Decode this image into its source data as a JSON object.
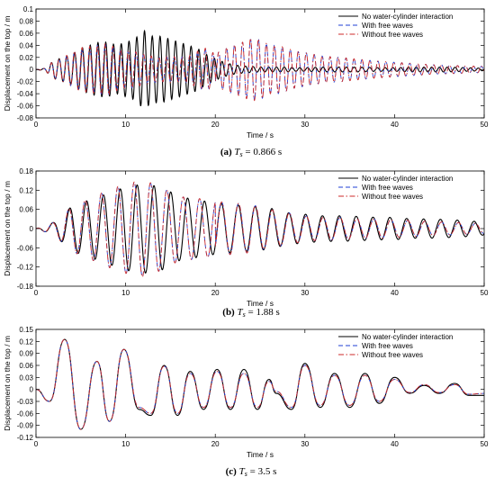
{
  "chart_data": [
    {
      "type": "line",
      "caption_tag": "(a)",
      "caption_value": "= 0.866 s",
      "xlabel": "Time / s",
      "ylabel": "Displacement on the top / m",
      "xlim": [
        0,
        50
      ],
      "ylim": [
        -0.08,
        0.1
      ],
      "xticks": [
        0,
        10,
        20,
        30,
        40,
        50
      ],
      "yticks": [
        -0.08,
        -0.06,
        -0.04,
        -0.02,
        0,
        0.02,
        0.04,
        0.06,
        0.08,
        0.1
      ],
      "ytick_labels": [
        "-0.08",
        "-0.06",
        "-0.04",
        "-0.02",
        "0",
        "0.02",
        "0.04",
        "0.06",
        "0.08",
        "0.1"
      ],
      "grid": false,
      "legend_position": "top-right",
      "series": [
        {
          "name": "No water-cylinder interaction",
          "color": "#000000",
          "dash": "solid",
          "x": [
            0,
            1,
            2,
            3,
            4,
            5,
            6,
            7,
            8,
            9,
            10,
            11,
            12,
            13,
            14,
            15,
            16,
            17,
            18,
            19,
            20,
            21,
            22,
            23,
            24,
            25,
            26,
            27,
            28,
            29,
            30,
            32,
            34,
            36,
            38,
            40,
            42,
            44,
            46,
            48,
            50
          ],
          "envelope": [
            0,
            0.002,
            0.015,
            0.02,
            0.025,
            0.035,
            0.04,
            0.045,
            0.045,
            0.04,
            0.045,
            0.05,
            0.065,
            0.055,
            0.055,
            0.05,
            0.045,
            0.04,
            0.035,
            0.025,
            0.018,
            0.012,
            0.008,
            0.006,
            0.005,
            0.004,
            0.004,
            0.004,
            0.004,
            0.003,
            0.003,
            0.004,
            0.004,
            0.004,
            0.003,
            0.003,
            0.004,
            0.004,
            0.004,
            0.003,
            0.002
          ]
        },
        {
          "name": "With free waves",
          "color": "#1f3fd6",
          "dash": "dashed",
          "x": [
            0,
            1,
            2,
            3,
            4,
            5,
            6,
            7,
            8,
            9,
            10,
            11,
            12,
            13,
            14,
            15,
            16,
            17,
            18,
            19,
            20,
            21,
            22,
            23,
            24,
            25,
            26,
            27,
            28,
            29,
            30,
            32,
            34,
            36,
            38,
            40,
            42,
            44,
            46,
            48,
            50
          ],
          "envelope": [
            0,
            0.002,
            0.015,
            0.02,
            0.028,
            0.035,
            0.038,
            0.04,
            0.042,
            0.035,
            0.03,
            0.03,
            0.025,
            0.022,
            0.02,
            0.022,
            0.02,
            0.022,
            0.03,
            0.035,
            0.025,
            0.035,
            0.04,
            0.045,
            0.05,
            0.05,
            0.04,
            0.04,
            0.035,
            0.03,
            0.028,
            0.022,
            0.02,
            0.017,
            0.014,
            0.012,
            0.01,
            0.008,
            0.007,
            0.006,
            0.005
          ]
        },
        {
          "name": "Without free waves",
          "color": "#cc2a2a",
          "dash": "dashdot",
          "x": [
            0,
            1,
            2,
            3,
            4,
            5,
            6,
            7,
            8,
            9,
            10,
            11,
            12,
            13,
            14,
            15,
            16,
            17,
            18,
            19,
            20,
            21,
            22,
            23,
            24,
            25,
            26,
            27,
            28,
            29,
            30,
            32,
            34,
            36,
            38,
            40,
            42,
            44,
            46,
            48,
            50
          ],
          "envelope": [
            0,
            0.002,
            0.015,
            0.02,
            0.028,
            0.036,
            0.038,
            0.04,
            0.043,
            0.035,
            0.03,
            0.03,
            0.025,
            0.022,
            0.02,
            0.022,
            0.02,
            0.022,
            0.03,
            0.036,
            0.025,
            0.035,
            0.04,
            0.045,
            0.052,
            0.05,
            0.04,
            0.04,
            0.035,
            0.03,
            0.028,
            0.022,
            0.02,
            0.017,
            0.014,
            0.012,
            0.01,
            0.008,
            0.007,
            0.006,
            0.005
          ]
        }
      ]
    },
    {
      "type": "line",
      "caption_tag": "(b)",
      "caption_value": "= 1.88 s",
      "xlabel": "Time / s",
      "ylabel": "Displacement on the top / m",
      "xlim": [
        0,
        50
      ],
      "ylim": [
        -0.18,
        0.18
      ],
      "xticks": [
        0,
        10,
        20,
        30,
        40,
        50
      ],
      "yticks": [
        -0.18,
        -0.12,
        -0.06,
        0,
        0.06,
        0.12,
        0.18
      ],
      "ytick_labels": [
        "-0.18",
        "-0.12",
        "-0.06",
        "0",
        "0.06",
        "0.12",
        "0.18"
      ],
      "grid": false,
      "legend_position": "top-right",
      "series": [
        {
          "name": "No water-cylinder interaction",
          "color": "#000000",
          "dash": "solid",
          "x": [
            0,
            2,
            4,
            6,
            8,
            10,
            12,
            14,
            16,
            18,
            20,
            22,
            24,
            26,
            28,
            30,
            32,
            34,
            36,
            38,
            40,
            42,
            44,
            46,
            48,
            50
          ],
          "envelope": [
            0,
            0.02,
            0.07,
            0.09,
            0.11,
            0.13,
            0.14,
            0.13,
            0.1,
            0.09,
            0.08,
            0.075,
            0.07,
            0.065,
            0.05,
            0.045,
            0.04,
            0.04,
            0.038,
            0.035,
            0.035,
            0.03,
            0.03,
            0.028,
            0.025,
            0.02
          ]
        },
        {
          "name": "With free waves",
          "color": "#1f3fd6",
          "dash": "dashed",
          "x": [
            0,
            2,
            4,
            6,
            8,
            10,
            12,
            14,
            16,
            18,
            20,
            22,
            24,
            26,
            28,
            30,
            32,
            34,
            36,
            38,
            40,
            42,
            44,
            46,
            48,
            50
          ],
          "envelope": [
            0,
            0.02,
            0.072,
            0.095,
            0.12,
            0.14,
            0.15,
            0.13,
            0.1,
            0.095,
            0.085,
            0.08,
            0.075,
            0.06,
            0.05,
            0.04,
            0.035,
            0.035,
            0.03,
            0.03,
            0.028,
            0.025,
            0.022,
            0.02,
            0.018,
            0.015
          ]
        },
        {
          "name": "Without free waves",
          "color": "#cc2a2a",
          "dash": "dashdot",
          "x": [
            0,
            2,
            4,
            6,
            8,
            10,
            12,
            14,
            16,
            18,
            20,
            22,
            24,
            26,
            28,
            30,
            32,
            34,
            36,
            38,
            40,
            42,
            44,
            46,
            48,
            50
          ],
          "envelope": [
            0,
            0.02,
            0.072,
            0.095,
            0.12,
            0.14,
            0.152,
            0.13,
            0.1,
            0.095,
            0.085,
            0.08,
            0.075,
            0.06,
            0.05,
            0.04,
            0.035,
            0.035,
            0.03,
            0.03,
            0.028,
            0.025,
            0.022,
            0.02,
            0.018,
            0.015
          ]
        }
      ]
    },
    {
      "type": "line",
      "caption_tag": "(c)",
      "caption_value": "= 3.5 s",
      "xlabel": "Time / s",
      "ylabel": "Displacement on the top / m",
      "xlim": [
        0,
        50
      ],
      "ylim": [
        -0.12,
        0.15
      ],
      "xticks": [
        0,
        10,
        20,
        30,
        40,
        50
      ],
      "yticks": [
        -0.12,
        -0.09,
        -0.06,
        -0.03,
        0,
        0.03,
        0.06,
        0.09,
        0.12,
        0.15
      ],
      "ytick_labels": [
        "-0.12",
        "-0.09",
        "-0.06",
        "-0.03",
        "0",
        "0.03",
        "0.06",
        "0.09",
        "0.12",
        "0.15"
      ],
      "grid": false,
      "legend_position": "top-right",
      "series": [
        {
          "name": "No water-cylinder interaction",
          "color": "#000000",
          "dash": "solid",
          "x": [
            0,
            1.5,
            3.2,
            5,
            6.8,
            8.2,
            9.8,
            11.5,
            12.8,
            14.3,
            15.8,
            17.2,
            18.7,
            20.2,
            21.7,
            23.2,
            24.7,
            26,
            26.8,
            28.5,
            30,
            31.7,
            33.3,
            35,
            36.7,
            38.3,
            40,
            41.7,
            43.3,
            45,
            46.7,
            48.3,
            50
          ],
          "y": [
            0,
            -0.03,
            0.125,
            -0.1,
            0.07,
            -0.08,
            0.1,
            -0.05,
            -0.065,
            0.06,
            -0.065,
            0.045,
            -0.05,
            0.05,
            -0.05,
            0.05,
            -0.05,
            0.025,
            -0.01,
            -0.05,
            0.065,
            -0.045,
            0.04,
            -0.045,
            0.04,
            -0.035,
            0.03,
            -0.01,
            0.01,
            -0.01,
            0.015,
            -0.015,
            -0.015
          ]
        },
        {
          "name": "With free waves",
          "color": "#1f3fd6",
          "dash": "dashed",
          "x": [
            0,
            1.5,
            3.2,
            5,
            6.8,
            8.2,
            9.8,
            11.5,
            12.8,
            14.3,
            15.8,
            17.2,
            18.7,
            20.2,
            21.7,
            23.2,
            24.7,
            26,
            26.8,
            28.5,
            30,
            31.7,
            33.3,
            35,
            36.7,
            38.3,
            40,
            41.7,
            43.3,
            45,
            46.7,
            48.3,
            50
          ],
          "y": [
            0,
            -0.03,
            0.125,
            -0.1,
            0.07,
            -0.08,
            0.1,
            -0.045,
            -0.06,
            0.058,
            -0.06,
            0.04,
            -0.045,
            0.045,
            -0.045,
            0.04,
            -0.045,
            0.02,
            -0.005,
            -0.045,
            0.06,
            -0.04,
            0.035,
            -0.04,
            0.035,
            -0.03,
            0.025,
            -0.008,
            0.012,
            -0.008,
            0.012,
            -0.012,
            -0.01
          ]
        },
        {
          "name": "Without free waves",
          "color": "#cc2a2a",
          "dash": "dashdot",
          "x": [
            0,
            1.5,
            3.2,
            5,
            6.8,
            8.2,
            9.8,
            11.5,
            12.8,
            14.3,
            15.8,
            17.2,
            18.7,
            20.2,
            21.7,
            23.2,
            24.7,
            26,
            26.8,
            28.5,
            30,
            31.7,
            33.3,
            35,
            36.7,
            38.3,
            40,
            41.7,
            43.3,
            45,
            46.7,
            48.3,
            50
          ],
          "y": [
            0,
            -0.03,
            0.125,
            -0.1,
            0.07,
            -0.08,
            0.1,
            -0.045,
            -0.06,
            0.058,
            -0.06,
            0.04,
            -0.045,
            0.045,
            -0.045,
            0.04,
            -0.045,
            0.02,
            -0.005,
            -0.045,
            0.06,
            -0.04,
            0.035,
            -0.04,
            0.035,
            -0.03,
            0.025,
            -0.008,
            0.012,
            -0.008,
            0.012,
            -0.012,
            -0.01
          ]
        }
      ]
    }
  ]
}
